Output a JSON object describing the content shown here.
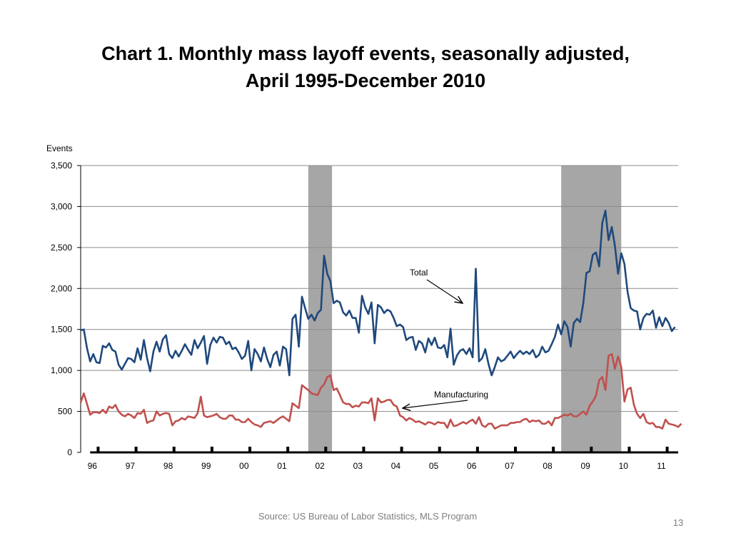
{
  "slide": {
    "title_line1": "Chart 1.  Monthly mass layoff events, seasonally adjusted,",
    "title_line2": "April 1995-December 2010",
    "source": "Source: US Bureau of Labor Statistics, MLS Program",
    "page_number": "13"
  },
  "chart_data": {
    "type": "line",
    "title": "Chart 1.  Monthly mass layoff events, seasonally adjusted, April 1995-December 2010",
    "ylabel": "Events",
    "xlabel": "",
    "ylim": [
      0,
      3500
    ],
    "yticks": [
      0,
      500,
      1000,
      1500,
      2000,
      2500,
      3000,
      3500
    ],
    "ytick_labels": [
      "0",
      "500",
      "1,000",
      "1,500",
      "2,000",
      "2,500",
      "3,000",
      "3,500"
    ],
    "x_range": [
      1995.25,
      2011.0
    ],
    "xticks": [
      1996,
      1997,
      1998,
      1999,
      2000,
      2001,
      2002,
      2003,
      2004,
      2005,
      2006,
      2007,
      2008,
      2009,
      2010,
      2011
    ],
    "xtick_labels": [
      "96",
      "97",
      "98",
      "99",
      "00",
      "01",
      "02",
      "03",
      "04",
      "05",
      "06",
      "07",
      "08",
      "09",
      "10",
      "11"
    ],
    "grid": true,
    "legend": "none",
    "recessions": [
      {
        "start": 2001.25,
        "end": 2001.875
      },
      {
        "start": 2007.917,
        "end": 2009.5
      }
    ],
    "series": [
      {
        "name": "Total",
        "color": "#1f497d",
        "x_start": 1995.25,
        "x_step": 0.08333,
        "values": [
          1490,
          1500,
          1270,
          1110,
          1200,
          1100,
          1090,
          1300,
          1280,
          1330,
          1250,
          1230,
          1070,
          1010,
          1080,
          1150,
          1140,
          1100,
          1270,
          1130,
          1370,
          1150,
          990,
          1230,
          1350,
          1230,
          1380,
          1430,
          1200,
          1150,
          1240,
          1170,
          1240,
          1320,
          1250,
          1190,
          1370,
          1270,
          1340,
          1420,
          1080,
          1310,
          1400,
          1340,
          1410,
          1400,
          1320,
          1350,
          1260,
          1280,
          1220,
          1140,
          1180,
          1360,
          1000,
          1260,
          1200,
          1110,
          1280,
          1140,
          1040,
          1190,
          1230,
          1060,
          1290,
          1260,
          940,
          1630,
          1680,
          1290,
          1900,
          1760,
          1630,
          1680,
          1610,
          1700,
          1740,
          2400,
          2180,
          2090,
          1820,
          1850,
          1830,
          1710,
          1670,
          1730,
          1640,
          1640,
          1460,
          1910,
          1770,
          1690,
          1830,
          1330,
          1800,
          1770,
          1700,
          1740,
          1720,
          1640,
          1540,
          1560,
          1530,
          1370,
          1400,
          1410,
          1250,
          1360,
          1330,
          1220,
          1390,
          1310,
          1400,
          1280,
          1270,
          1310,
          1160,
          1510,
          1070,
          1180,
          1240,
          1260,
          1200,
          1270,
          1160,
          2240,
          1110,
          1150,
          1260,
          1080,
          940,
          1040,
          1160,
          1110,
          1130,
          1180,
          1230,
          1150,
          1200,
          1240,
          1200,
          1230,
          1200,
          1250,
          1160,
          1190,
          1290,
          1220,
          1240,
          1320,
          1410,
          1560,
          1440,
          1600,
          1530,
          1290,
          1580,
          1630,
          1590,
          1820,
          2190,
          2210,
          2410,
          2440,
          2270,
          2800,
          2950,
          2590,
          2750,
          2520,
          2180,
          2430,
          2300,
          1960,
          1760,
          1730,
          1720,
          1500,
          1640,
          1690,
          1680,
          1730,
          1520,
          1650,
          1540,
          1640,
          1580,
          1480,
          1530
        ]
      },
      {
        "name": "Manufacturing",
        "color": "#c0504d",
        "x_start": 1995.25,
        "x_step": 0.08333,
        "values": [
          610,
          720,
          590,
          460,
          490,
          490,
          480,
          520,
          480,
          560,
          540,
          580,
          500,
          460,
          440,
          470,
          450,
          420,
          480,
          470,
          520,
          360,
          380,
          390,
          500,
          450,
          470,
          480,
          470,
          330,
          380,
          390,
          420,
          400,
          440,
          430,
          420,
          480,
          680,
          450,
          430,
          440,
          450,
          470,
          430,
          410,
          410,
          450,
          450,
          400,
          400,
          370,
          370,
          410,
          370,
          340,
          330,
          310,
          360,
          370,
          380,
          360,
          390,
          420,
          440,
          410,
          380,
          600,
          570,
          540,
          820,
          790,
          760,
          720,
          710,
          700,
          790,
          830,
          920,
          940,
          760,
          780,
          700,
          610,
          590,
          590,
          550,
          570,
          560,
          610,
          610,
          600,
          660,
          390,
          660,
          610,
          620,
          640,
          640,
          580,
          560,
          450,
          430,
          390,
          420,
          400,
          370,
          380,
          360,
          340,
          370,
          360,
          340,
          370,
          360,
          360,
          300,
          400,
          320,
          330,
          350,
          370,
          350,
          380,
          400,
          350,
          430,
          330,
          310,
          350,
          350,
          290,
          310,
          330,
          330,
          330,
          360,
          360,
          370,
          370,
          400,
          410,
          370,
          390,
          380,
          390,
          350,
          350,
          380,
          330,
          420,
          420,
          440,
          460,
          450,
          470,
          440,
          440,
          470,
          500,
          460,
          570,
          620,
          690,
          880,
          920,
          760,
          1180,
          1200,
          1020,
          1170,
          1040,
          620,
          770,
          790,
          580,
          470,
          420,
          470,
          370,
          350,
          360,
          310,
          310,
          290,
          400,
          350,
          340,
          330,
          310,
          350
        ]
      }
    ],
    "annotations": [
      {
        "text": "Total",
        "points_to": "Total"
      },
      {
        "text": "Manufacturing",
        "points_to": "Manufacturing"
      }
    ]
  }
}
